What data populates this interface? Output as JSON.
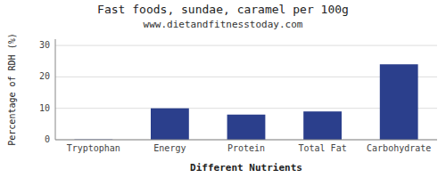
{
  "chart_data": {
    "type": "bar",
    "title": "Fast foods, sundae, caramel per 100g",
    "subtitle": "www.dietandfitnesstoday.com",
    "xlabel": "Different Nutrients",
    "ylabel": "Percentage of RDH (%)",
    "categories": [
      "Tryptophan",
      "Energy",
      "Protein",
      "Total Fat",
      "Carbohydrate"
    ],
    "values": [
      0.1,
      10.0,
      8.0,
      9.0,
      24.0
    ],
    "color": "#2b3f8c",
    "ylim": [
      0,
      32
    ],
    "yticks": [
      0,
      10,
      20,
      30
    ],
    "grid": true
  }
}
